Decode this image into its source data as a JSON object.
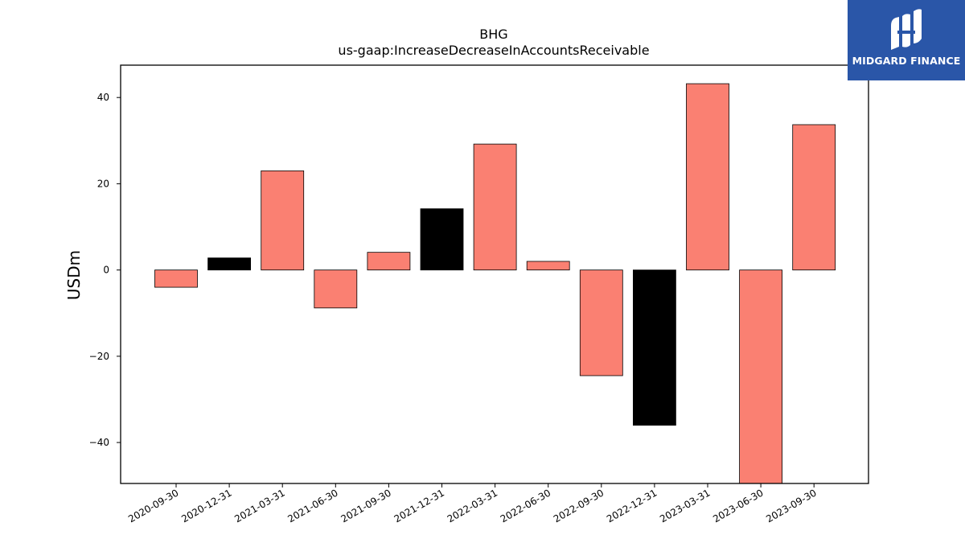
{
  "brand": {
    "name": "MIDGARD FINANCE",
    "bg_color": "#2a56a8"
  },
  "chart_data": {
    "type": "bar",
    "title": "BHG",
    "subtitle": "us-gaap:IncreaseDecreaseInAccountsReceivable",
    "xlabel": "",
    "ylabel": "USDm",
    "categories": [
      "2020-09-30",
      "2020-12-31",
      "2021-03-31",
      "2021-06-30",
      "2021-09-30",
      "2021-12-31",
      "2022-03-31",
      "2022-06-30",
      "2022-09-30",
      "2022-12-31",
      "2023-03-31",
      "2023-06-30",
      "2023-09-30"
    ],
    "values": [
      -4.0,
      2.8,
      23.0,
      -8.8,
      4.1,
      14.2,
      29.2,
      2.0,
      -24.5,
      -36.0,
      43.2,
      -49.5,
      33.7
    ],
    "bar_colors": [
      "#fa8072",
      "#000000",
      "#fa8072",
      "#fa8072",
      "#fa8072",
      "#000000",
      "#fa8072",
      "#fa8072",
      "#fa8072",
      "#000000",
      "#fa8072",
      "#fa8072",
      "#fa8072"
    ],
    "ylim": [
      -49.5,
      47.5
    ],
    "yticks": [
      -40,
      -20,
      0,
      20,
      40
    ],
    "ytick_labels": [
      "−40",
      "−20",
      "0",
      "20",
      "40"
    ],
    "grid": false,
    "legend": "none"
  }
}
